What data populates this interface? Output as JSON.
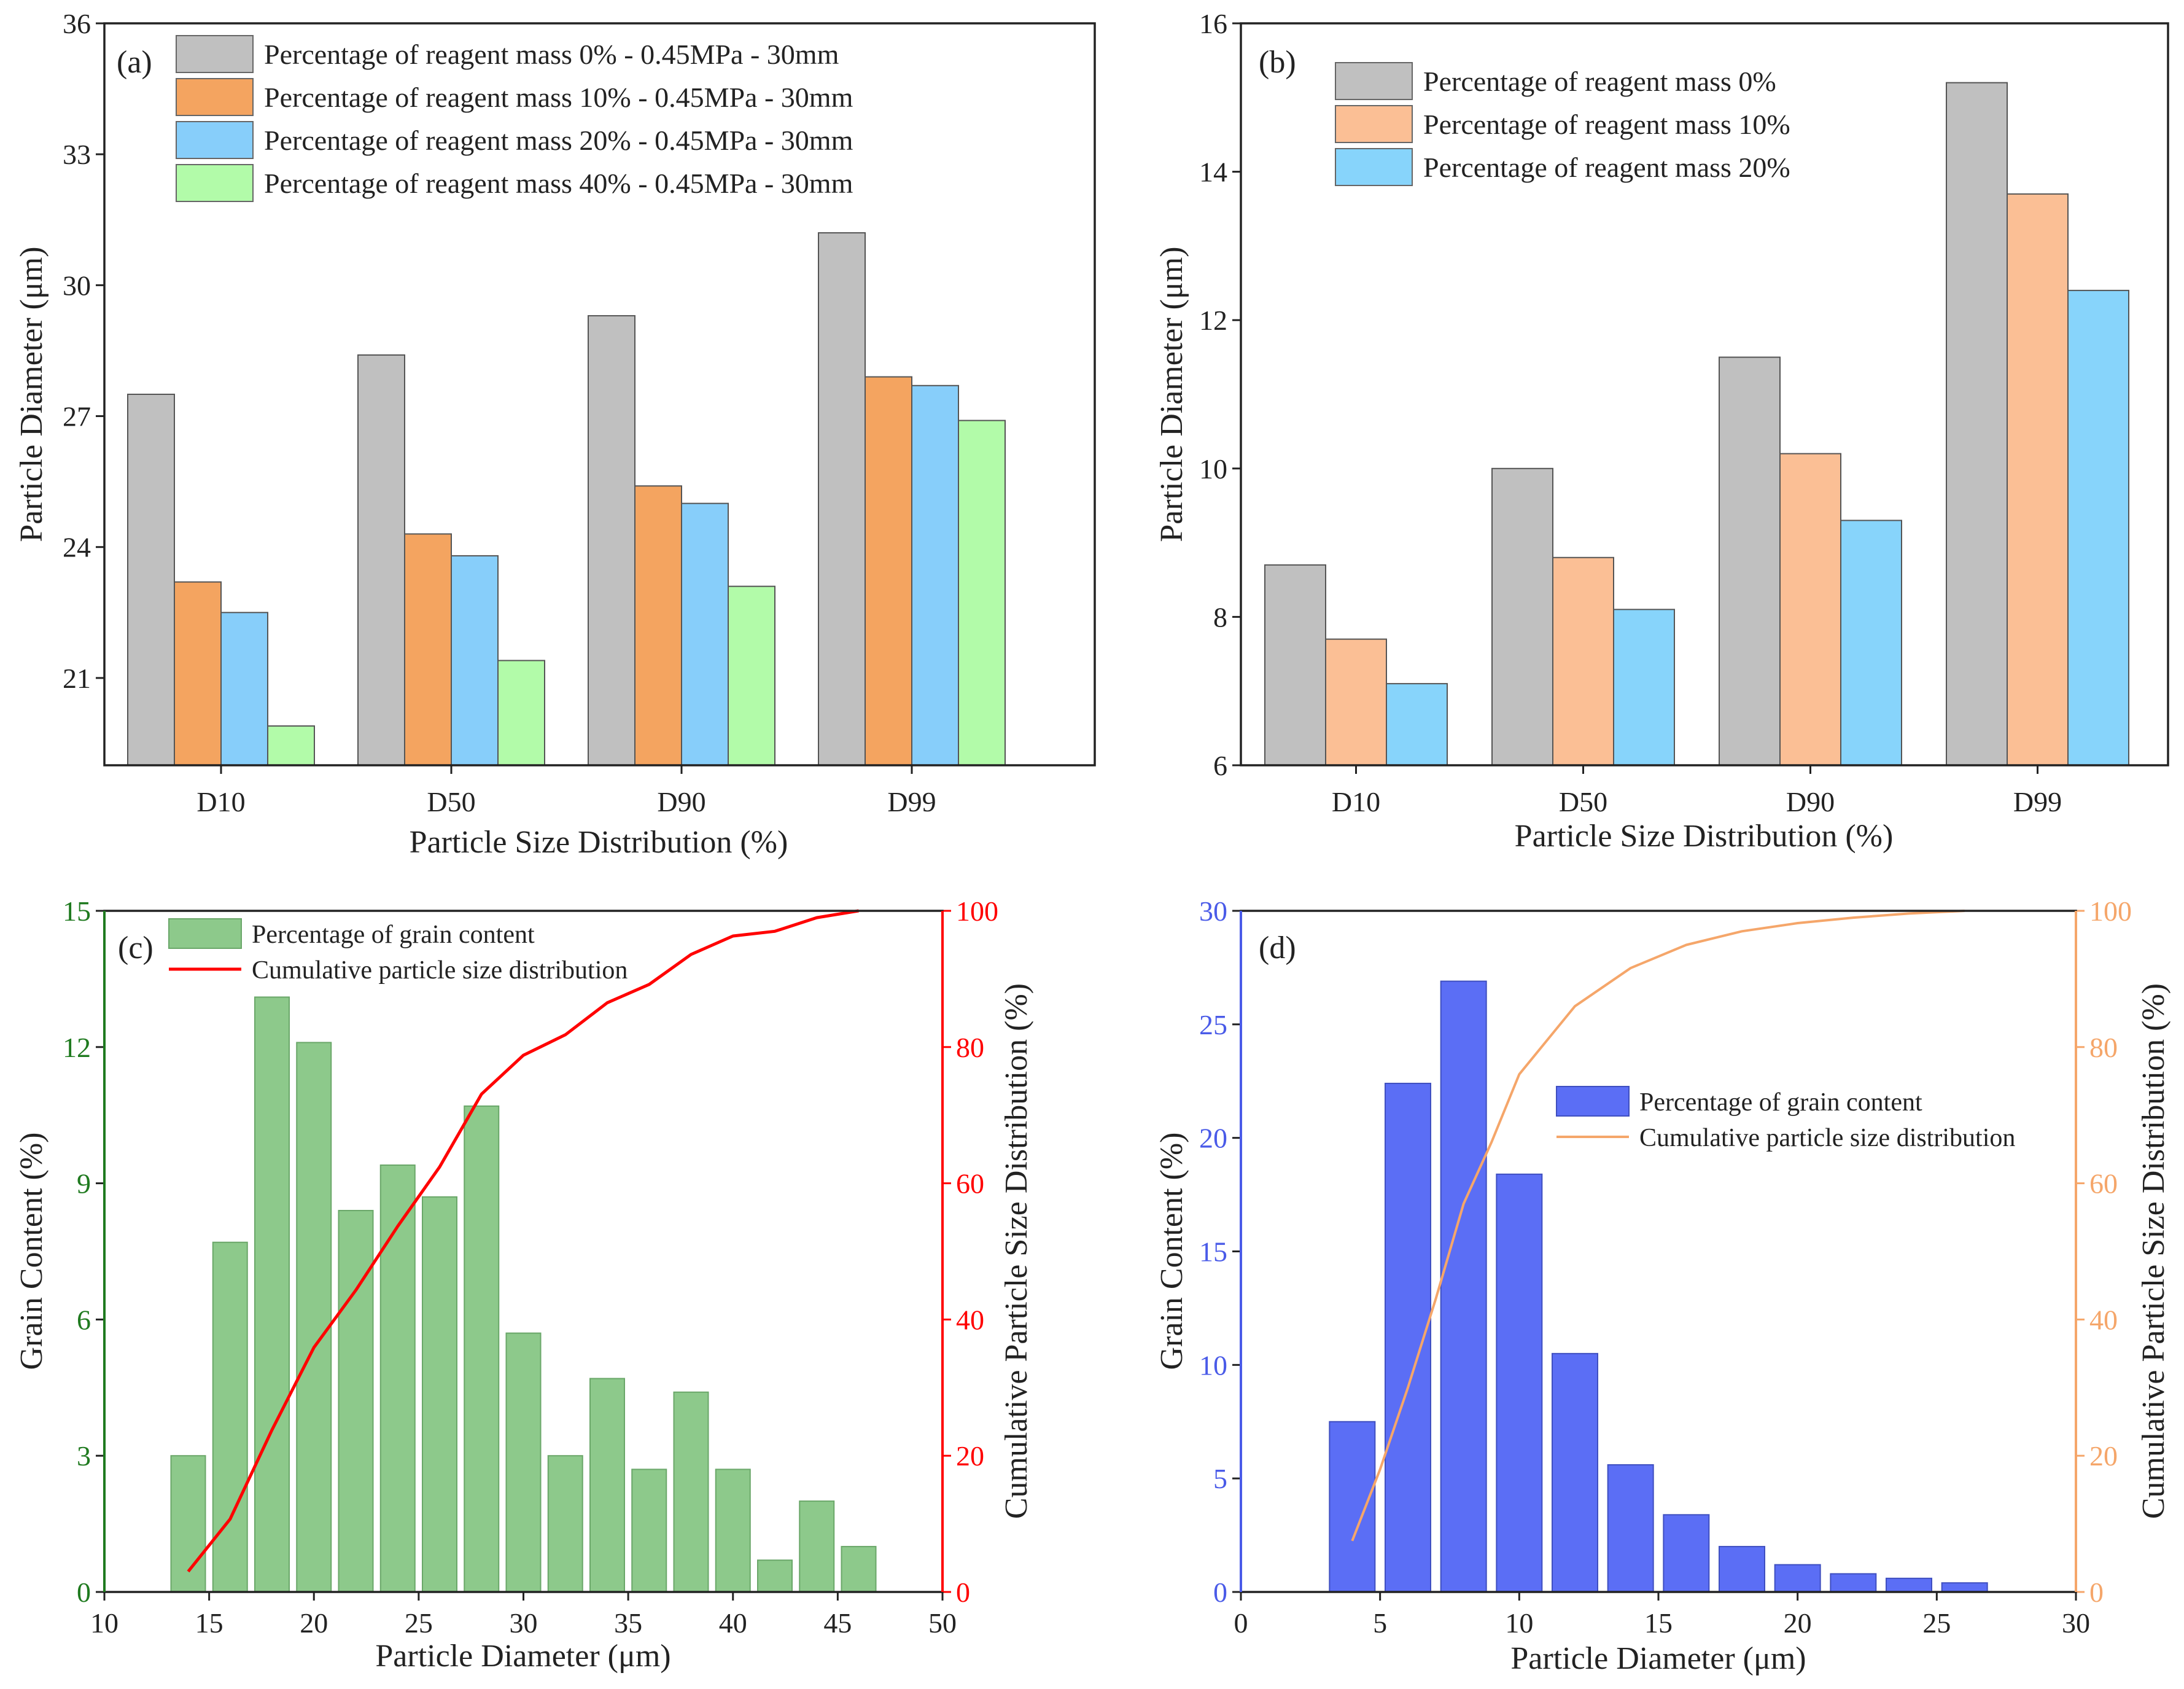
{
  "chart_data": [
    {
      "type": "bar",
      "panel_label": "(a)",
      "xlabel": "Particle Size Distribution (%)",
      "ylabel": "Particle Diameter (μm)",
      "ylim": [
        19,
        36
      ],
      "yticks": [
        "21",
        "24",
        "27",
        "30",
        "33",
        "36"
      ],
      "categories": [
        "D10",
        "D50",
        "D90",
        "D99"
      ],
      "legend_position": "top-right",
      "series": [
        {
          "name": "Percentage of reagent mass 0% - 0.45MPa - 30mm",
          "color": "#c0c0c0",
          "values": [
            27.5,
            28.4,
            29.3,
            31.2
          ]
        },
        {
          "name": "Percentage of reagent mass 10% - 0.45MPa - 30mm",
          "color": "#f4a460",
          "values": [
            23.2,
            24.3,
            25.4,
            27.9
          ]
        },
        {
          "name": "Percentage of reagent mass 20% - 0.45MPa - 30mm",
          "color": "#87cefa",
          "values": [
            22.5,
            23.8,
            25.0,
            27.7
          ]
        },
        {
          "name": "Percentage of reagent mass 40% - 0.45MPa - 30mm",
          "color": "#b2fba9",
          "values": [
            19.9,
            21.4,
            23.1,
            26.9
          ]
        }
      ]
    },
    {
      "type": "bar",
      "panel_label": "(b)",
      "xlabel": "Particle Size Distribution (%)",
      "ylabel": "Particle Diameter (μm)",
      "ylim": [
        6,
        16
      ],
      "yticks": [
        "6",
        "8",
        "10",
        "12",
        "14",
        "16"
      ],
      "categories": [
        "D10",
        "D50",
        "D90",
        "D99"
      ],
      "legend_position": "top-left",
      "series": [
        {
          "name": "Percentage of reagent mass 0%",
          "color": "#c0c0c0",
          "values": [
            8.7,
            10.0,
            11.5,
            15.2
          ]
        },
        {
          "name": "Percentage of reagent mass 10%",
          "color": "#fbbf95",
          "values": [
            7.7,
            8.8,
            10.2,
            13.7
          ]
        },
        {
          "name": "Percentage of reagent mass 20%",
          "color": "#87d4fb",
          "values": [
            7.1,
            8.1,
            9.3,
            12.4
          ]
        }
      ]
    },
    {
      "type": "bar+line",
      "panel_label": "(c)",
      "xlabel": "Particle Diameter (μm)",
      "ylabel": "Grain Content (%)",
      "y2label": "Cumulative Particle Size Distribution (%)",
      "xlim": [
        10,
        50
      ],
      "ylim": [
        0,
        15
      ],
      "y2lim": [
        0,
        100
      ],
      "xticks": [
        "10",
        "15",
        "20",
        "25",
        "30",
        "35",
        "40",
        "45",
        "50"
      ],
      "yticks": [
        "0",
        "3",
        "6",
        "9",
        "12",
        "15"
      ],
      "y2ticks": [
        "0",
        "20",
        "40",
        "60",
        "80",
        "100"
      ],
      "left_axis_color": "#1f7a1f",
      "right_axis_color": "#ff0000",
      "legend_position": "top-left",
      "bar_series": {
        "name": "Percentage of grain content",
        "color": "#8dc98b",
        "x": [
          14,
          16,
          18,
          20,
          22,
          24,
          26,
          28,
          30,
          32,
          34,
          36,
          38,
          40,
          42,
          44,
          46
        ],
        "values": [
          3.0,
          7.7,
          13.1,
          12.1,
          8.4,
          9.4,
          8.7,
          10.7,
          5.7,
          3.0,
          4.7,
          2.7,
          4.4,
          2.7,
          0.7,
          2.0,
          1.0
        ]
      },
      "line_series": {
        "name": "Cumulative particle size distribution",
        "color": "#ff0000",
        "x": [
          14,
          16,
          18,
          20,
          22,
          24,
          26,
          28,
          30,
          32,
          34,
          36,
          38,
          40,
          42,
          44,
          46
        ],
        "values": [
          3.0,
          10.7,
          23.8,
          35.9,
          44.3,
          53.7,
          62.4,
          73.1,
          78.8,
          81.8,
          86.5,
          89.2,
          93.6,
          96.3,
          97.0,
          99.0,
          100.0
        ]
      }
    },
    {
      "type": "bar+line",
      "panel_label": "(d)",
      "xlabel": "Particle Diameter (μm)",
      "ylabel": "Grain Content (%)",
      "y2label": "Cumulative Particle Size Distribution (%)",
      "xlim": [
        0,
        30
      ],
      "ylim": [
        0,
        30
      ],
      "y2lim": [
        0,
        100
      ],
      "xticks": [
        "0",
        "5",
        "10",
        "15",
        "20",
        "25",
        "30"
      ],
      "yticks": [
        "0",
        "5",
        "10",
        "15",
        "20",
        "25",
        "30"
      ],
      "y2ticks": [
        "0",
        "20",
        "40",
        "60",
        "80",
        "100"
      ],
      "left_axis_color": "#4a5be8",
      "right_axis_color": "#f5a66a",
      "legend_position": "center-right",
      "bar_series": {
        "name": "Percentage of grain content",
        "color": "#5b6ef5",
        "x": [
          4,
          6,
          8,
          10,
          12,
          14,
          16,
          18,
          20,
          22,
          24,
          26
        ],
        "values": [
          7.5,
          22.4,
          26.9,
          18.4,
          10.5,
          5.6,
          3.4,
          2.0,
          1.2,
          0.8,
          0.6,
          0.4
        ]
      },
      "line_series": {
        "name": "Cumulative particle size distribution",
        "color": "#f5a66a",
        "x": [
          4,
          5,
          6,
          7,
          8,
          9,
          10,
          12,
          14,
          16,
          18,
          20,
          22,
          24,
          26
        ],
        "values": [
          7.5,
          18,
          30,
          43,
          57,
          66,
          76,
          86,
          91.6,
          95,
          97,
          98.2,
          99,
          99.6,
          100
        ]
      }
    }
  ]
}
